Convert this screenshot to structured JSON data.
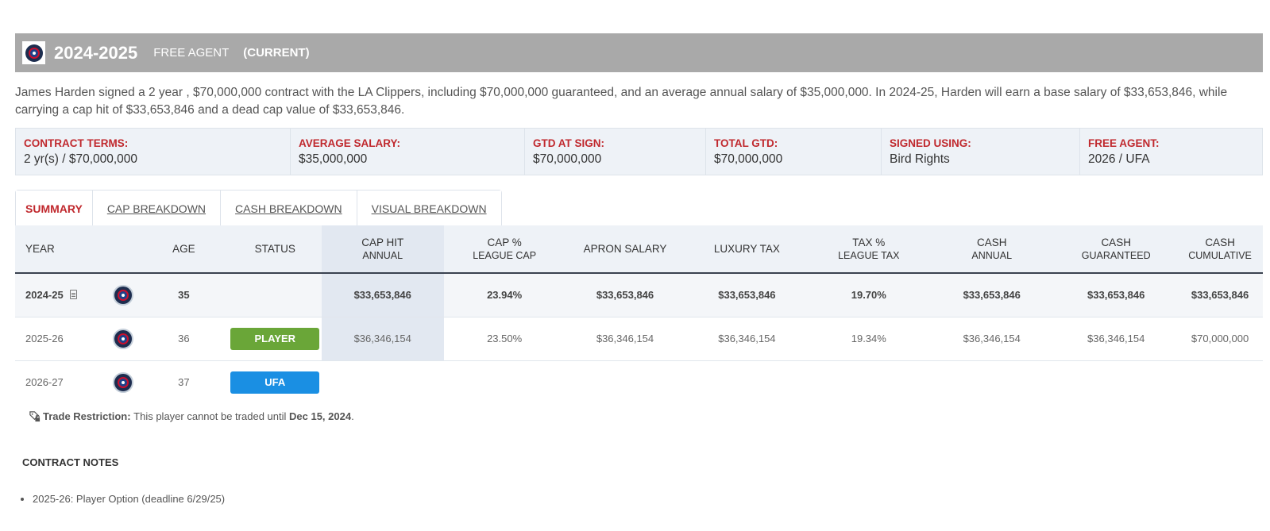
{
  "header": {
    "season": "2024-2025",
    "status": "FREE AGENT",
    "current": "(CURRENT)",
    "logo_icon": "clippers-logo-icon"
  },
  "summary": "James Harden signed a 2 year , $70,000,000 contract with the LA Clippers, including $70,000,000 guaranteed, and an average annual salary of $35,000,000. In 2024-25, Harden will earn a base salary of $33,653,846, while carrying a cap hit of $33,653,846 and a dead cap value of $33,653,846.",
  "terms": [
    {
      "label": "CONTRACT TERMS:",
      "value": "2 yr(s) / $70,000,000"
    },
    {
      "label": "AVERAGE SALARY:",
      "value": "$35,000,000"
    },
    {
      "label": "GTD AT SIGN:",
      "value": "$70,000,000"
    },
    {
      "label": "TOTAL GTD:",
      "value": "$70,000,000"
    },
    {
      "label": "SIGNED USING:",
      "value": "Bird Rights"
    },
    {
      "label": "FREE AGENT:",
      "value": "2026 / UFA"
    }
  ],
  "tabs": [
    "SUMMARY",
    "CAP BREAKDOWN",
    "CASH BREAKDOWN",
    "VISUAL BREAKDOWN"
  ],
  "table": {
    "headers": {
      "year": "YEAR",
      "age": "AGE",
      "status": "STATUS",
      "cap_hit": "CAP HIT",
      "cap_hit_sub": "ANNUAL",
      "cap_pct": "CAP %",
      "cap_pct_sub": "LEAGUE CAP",
      "apron": "APRON SALARY",
      "luxury": "LUXURY TAX",
      "tax_pct": "TAX %",
      "tax_pct_sub": "LEAGUE TAX",
      "cash": "CASH",
      "cash_sub": "ANNUAL",
      "cash_g": "CASH",
      "cash_g_sub": "GUARANTEED",
      "cash_c": "CASH",
      "cash_c_sub": "CUMULATIVE"
    },
    "rows": [
      {
        "year": "2024-25",
        "age": "35",
        "status": "",
        "cap_hit": "$33,653,846",
        "cap_pct": "23.94%",
        "apron": "$33,653,846",
        "luxury": "$33,653,846",
        "tax_pct": "19.70%",
        "cash": "$33,653,846",
        "cash_g": "$33,653,846",
        "cash_c": "$33,653,846"
      },
      {
        "year": "2025-26",
        "age": "36",
        "status": "PLAYER",
        "cap_hit": "$36,346,154",
        "cap_pct": "23.50%",
        "apron": "$36,346,154",
        "luxury": "$36,346,154",
        "tax_pct": "19.34%",
        "cash": "$36,346,154",
        "cash_g": "$36,346,154",
        "cash_c": "$70,000,000"
      },
      {
        "year": "2026-27",
        "age": "37",
        "status": "UFA",
        "cap_hit": "",
        "cap_pct": "",
        "apron": "",
        "luxury": "",
        "tax_pct": "",
        "cash": "",
        "cash_g": "",
        "cash_c": ""
      }
    ]
  },
  "restriction": {
    "label": "Trade Restriction:",
    "text": "This player cannot be traded until",
    "date": "Dec 15, 2024",
    "end": "."
  },
  "notes": {
    "title": "CONTRACT NOTES",
    "items": [
      "2025-26: Player Option (deadline 6/29/25)"
    ]
  },
  "colors": {
    "accent": "#c0282d",
    "player_badge": "#6aa638",
    "ufa_badge": "#1a8fe3",
    "header_bar": "#a9a9a9"
  }
}
